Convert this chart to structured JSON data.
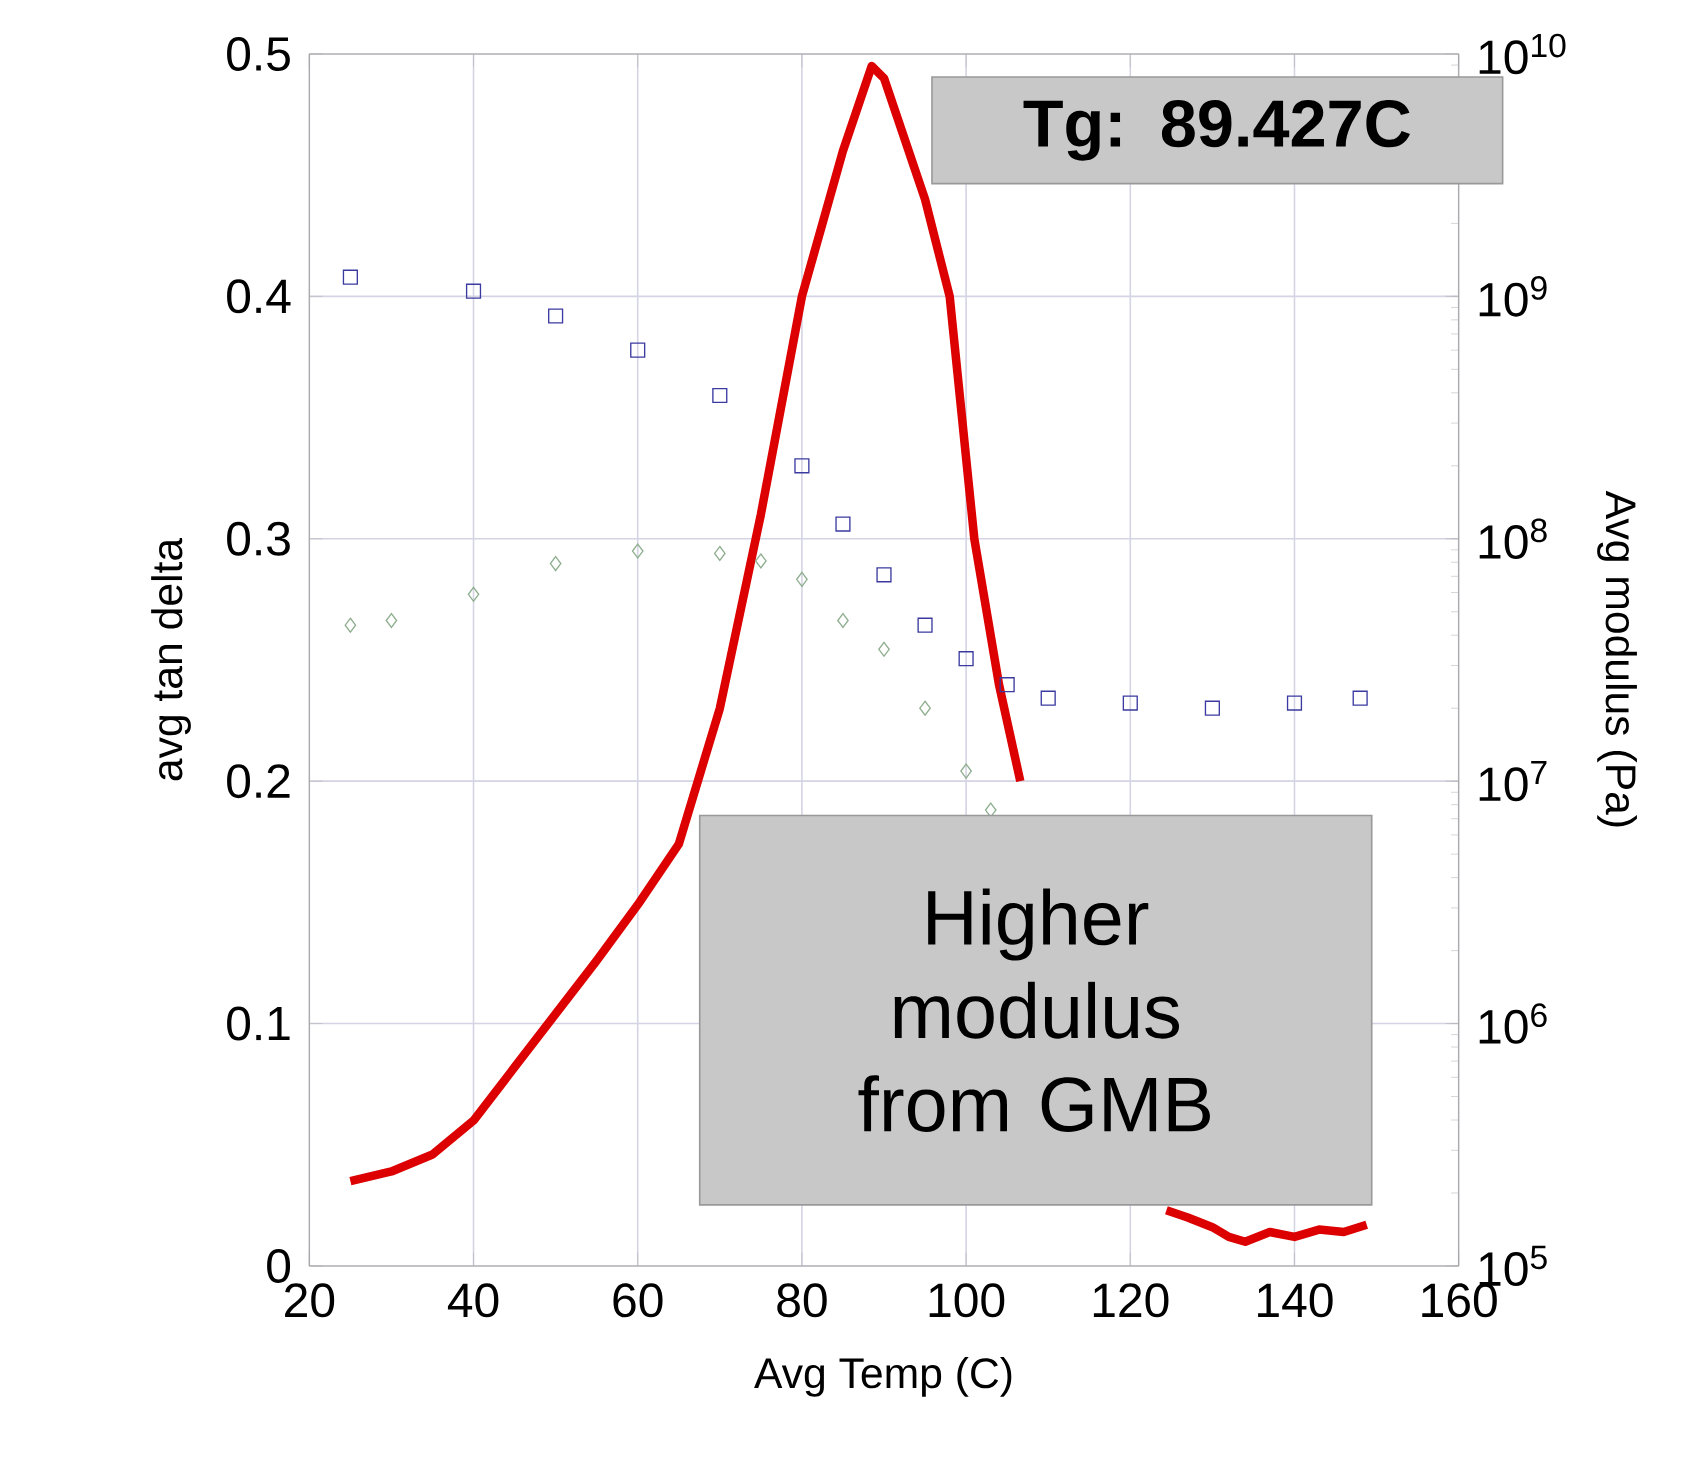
{
  "chart_data": {
    "type": "line",
    "xlabel": "Avg Temp (C)",
    "ylabel": "avg tan delta",
    "y2label": "Avg modulus (Pa)",
    "xlim": [
      20,
      160
    ],
    "xticks": [
      20,
      40,
      60,
      80,
      100,
      120,
      140,
      160
    ],
    "ylim": [
      0,
      0.5
    ],
    "yticks": [
      0,
      0.1,
      0.2,
      0.3,
      0.4,
      0.5
    ],
    "y2lim": [
      100000,
      10000000000
    ],
    "y2ticks": [
      {
        "value": 100000,
        "label": "10$^{5}$"
      },
      {
        "value": 1000000,
        "label": "10$^{6}$"
      },
      {
        "value": 10000000,
        "label": "10$^{7}$"
      },
      {
        "value": 100000000,
        "label": "10$^{8}$"
      },
      {
        "value": 1000000000,
        "label": "10$^{9}$"
      },
      {
        "value": 10000000000,
        "label": "10$^{10}$"
      }
    ],
    "log": "y2",
    "grid": true,
    "line_style": "solid",
    "series": [
      {
        "color": "#dd0000",
        "marker": "none",
        "x": [
          25,
          30,
          35,
          40,
          45,
          50,
          55,
          60,
          65,
          70,
          75,
          80,
          85,
          88.5,
          90,
          92,
          95,
          98,
          101,
          104,
          106.6,
          115,
          124.4,
          127,
          130,
          132,
          134,
          137,
          140,
          143,
          146,
          148.8
        ],
        "values": [
          0.035,
          0.039,
          0.046,
          0.06,
          0.082,
          0.104,
          0.126,
          0.149,
          0.174,
          0.23,
          0.31,
          0.4,
          0.46,
          0.495,
          0.49,
          0.47,
          0.44,
          0.4,
          0.3,
          0.24,
          0.2,
          null,
          0.023,
          0.02,
          0.016,
          0.012,
          0.01,
          0.014,
          0.012,
          0.015,
          0.014,
          0.017
        ]
      },
      {
        "type": "scatter",
        "axis": "y2",
        "color": "#3a3aa0",
        "marker": "square",
        "x": [
          25,
          40,
          50,
          60,
          70,
          80,
          85,
          90,
          95,
          100,
          105,
          110,
          120,
          130,
          140,
          148
        ],
        "values": [
          1200000000,
          1050000000,
          830000000,
          600000000,
          390000000,
          200000000,
          115000000,
          71000000,
          44000000,
          32000000,
          25000000,
          22000000,
          21000000,
          20000000,
          21000000,
          22000000
        ]
      },
      {
        "type": "scatter",
        "axis": "y2",
        "color": "#8fae8f",
        "marker": "diamond",
        "x": [
          25,
          30,
          40,
          50,
          60,
          70,
          75,
          80,
          85,
          90,
          95,
          100,
          103
        ],
        "values": [
          44000000,
          46000000,
          59000000,
          79000000,
          89000000,
          87000000,
          81000000,
          68000000,
          46000000,
          35000000,
          20000000,
          11000000,
          7600000
        ]
      }
    ],
    "annotations": [
      "**Tg: 89.427C**",
      "Higher modulus from GMB"
    ]
  }
}
